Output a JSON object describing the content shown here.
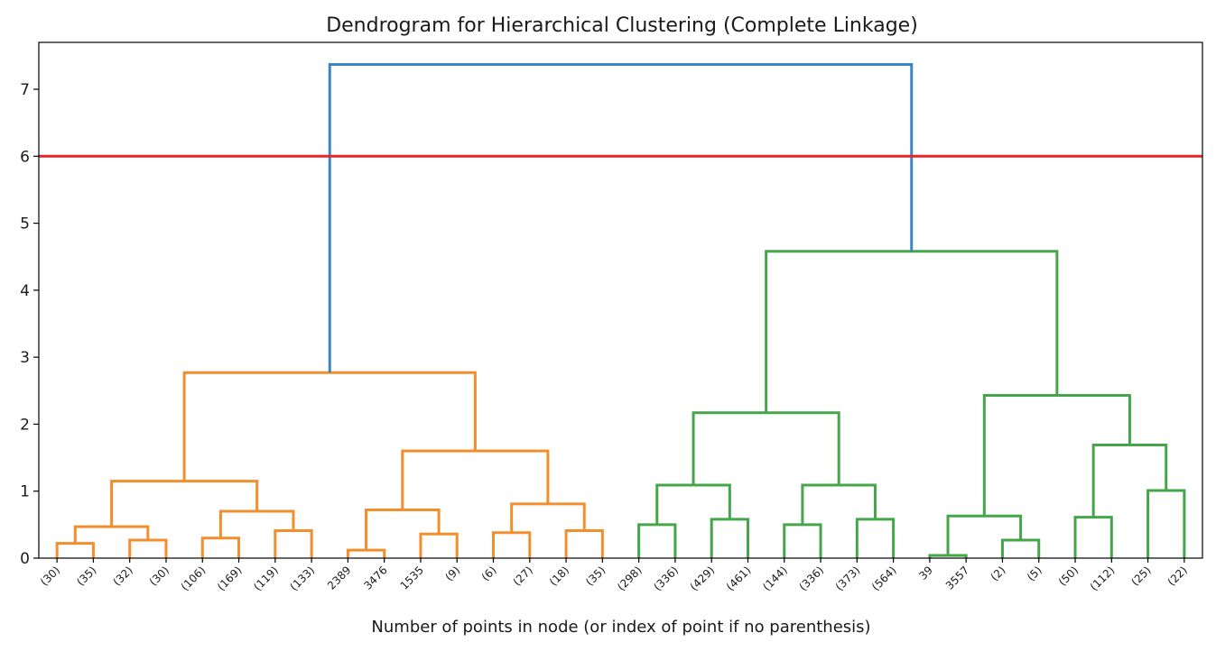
{
  "chart_data": {
    "type": "dendrogram",
    "title": "Dendrogram for Hierarchical Clustering (Complete Linkage)",
    "xlabel": "Number of points in node (or index of point if no parenthesis)",
    "ylabel": "",
    "ylim": [
      0,
      7.7
    ],
    "yticks": [
      "0",
      "1",
      "2",
      "3",
      "4",
      "5",
      "6",
      "7"
    ],
    "ytick_values": [
      0,
      1,
      2,
      3,
      4,
      5,
      6,
      7
    ],
    "grid": false,
    "leaves": [
      "(30)",
      "(35)",
      "(32)",
      "(30)",
      "(106)",
      "(169)",
      "(119)",
      "(133)",
      "2389",
      "3476",
      "1535",
      "(9)",
      "(6)",
      "(27)",
      "(18)",
      "(35)",
      "(298)",
      "(336)",
      "(429)",
      "(461)",
      "(144)",
      "(336)",
      "(373)",
      "(564)",
      "39",
      "3557",
      "(2)",
      "(5)",
      "(50)",
      "(112)",
      "(25)",
      "(22)"
    ],
    "cut_line": {
      "height": 6.0,
      "color": "#e8262a"
    },
    "colors": {
      "orange": "#f28e2b",
      "green": "#44a648",
      "blue": "#3a87c0"
    },
    "merges": [
      {
        "left": "L0",
        "right": "L1",
        "height": 0.22,
        "color": "orange"
      },
      {
        "left": "L2",
        "right": "L3",
        "height": 0.27,
        "color": "orange"
      },
      {
        "left": "N0",
        "right": "N1",
        "height": 0.47,
        "color": "orange"
      },
      {
        "left": "L4",
        "right": "L5",
        "height": 0.3,
        "color": "orange"
      },
      {
        "left": "L6",
        "right": "L7",
        "height": 0.41,
        "color": "orange"
      },
      {
        "left": "N3",
        "right": "N4",
        "height": 0.7,
        "color": "orange"
      },
      {
        "left": "N2",
        "right": "N5",
        "height": 1.15,
        "color": "orange"
      },
      {
        "left": "L8",
        "right": "L9",
        "height": 0.12,
        "color": "orange"
      },
      {
        "left": "L10",
        "right": "L11",
        "height": 0.36,
        "color": "orange"
      },
      {
        "left": "N7",
        "right": "N8",
        "height": 0.72,
        "color": "orange"
      },
      {
        "left": "L12",
        "right": "L13",
        "height": 0.38,
        "color": "orange"
      },
      {
        "left": "L14",
        "right": "L15",
        "height": 0.41,
        "color": "orange"
      },
      {
        "left": "N10",
        "right": "N11",
        "height": 0.81,
        "color": "orange"
      },
      {
        "left": "N9",
        "right": "N12",
        "height": 1.6,
        "color": "orange"
      },
      {
        "left": "N6",
        "right": "N13",
        "height": 2.77,
        "color": "orange"
      },
      {
        "left": "L16",
        "right": "L17",
        "height": 0.5,
        "color": "green"
      },
      {
        "left": "L18",
        "right": "L19",
        "height": 0.58,
        "color": "green"
      },
      {
        "left": "N15",
        "right": "N16",
        "height": 1.09,
        "color": "green"
      },
      {
        "left": "L20",
        "right": "L21",
        "height": 0.5,
        "color": "green"
      },
      {
        "left": "L22",
        "right": "L23",
        "height": 0.58,
        "color": "green"
      },
      {
        "left": "N18",
        "right": "N19",
        "height": 1.09,
        "color": "green"
      },
      {
        "left": "N17",
        "right": "N20",
        "height": 2.17,
        "color": "green"
      },
      {
        "left": "L24",
        "right": "L25",
        "height": 0.04,
        "color": "green"
      },
      {
        "left": "L26",
        "right": "L27",
        "height": 0.27,
        "color": "green"
      },
      {
        "left": "N22",
        "right": "N23",
        "height": 0.63,
        "color": "green"
      },
      {
        "left": "L28",
        "right": "L29",
        "height": 0.61,
        "color": "green"
      },
      {
        "left": "L30",
        "right": "L31",
        "height": 1.01,
        "color": "green"
      },
      {
        "left": "N25",
        "right": "N26",
        "height": 1.69,
        "color": "green"
      },
      {
        "left": "N24",
        "right": "N27",
        "height": 2.43,
        "color": "green"
      },
      {
        "left": "N21",
        "right": "N28",
        "height": 4.58,
        "color": "green"
      },
      {
        "left": "N14",
        "right": "N29",
        "height": 7.37,
        "color": "blue"
      }
    ]
  }
}
